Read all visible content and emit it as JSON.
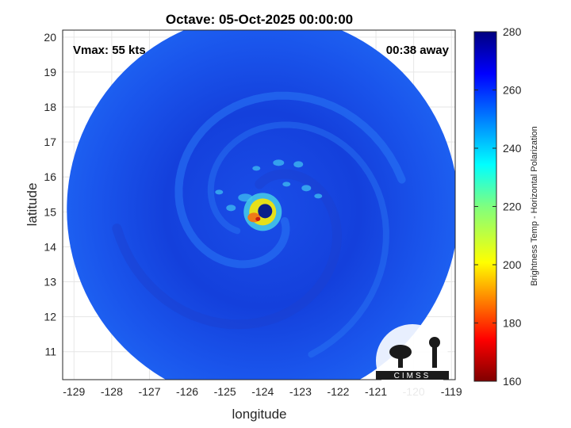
{
  "chart_data": {
    "type": "heatmap",
    "title": "Octave: 05-Oct-2025 00:00:00",
    "xlabel": "longitude",
    "ylabel": "latitude",
    "xlim": [
      -129.3,
      -118.9
    ],
    "ylim": [
      10.2,
      20.2
    ],
    "x_ticks": [
      -129,
      -128,
      -127,
      -126,
      -125,
      -124,
      -123,
      -122,
      -121,
      -120,
      -119
    ],
    "y_ticks": [
      11,
      12,
      13,
      14,
      15,
      16,
      17,
      18,
      19,
      20
    ],
    "grid": true,
    "annotations": {
      "vmax": "Vmax: 55 kts",
      "time_away": "00:38 away"
    },
    "storm_center": {
      "lon": -124.0,
      "lat": 15.0
    },
    "colorbar": {
      "label": "Brightness Temp - Horizontal Polarization",
      "range": [
        160,
        280
      ],
      "ticks": [
        160,
        180,
        200,
        220,
        240,
        260,
        280
      ],
      "colormap": "jet"
    },
    "logo_text": "CIMSS"
  }
}
